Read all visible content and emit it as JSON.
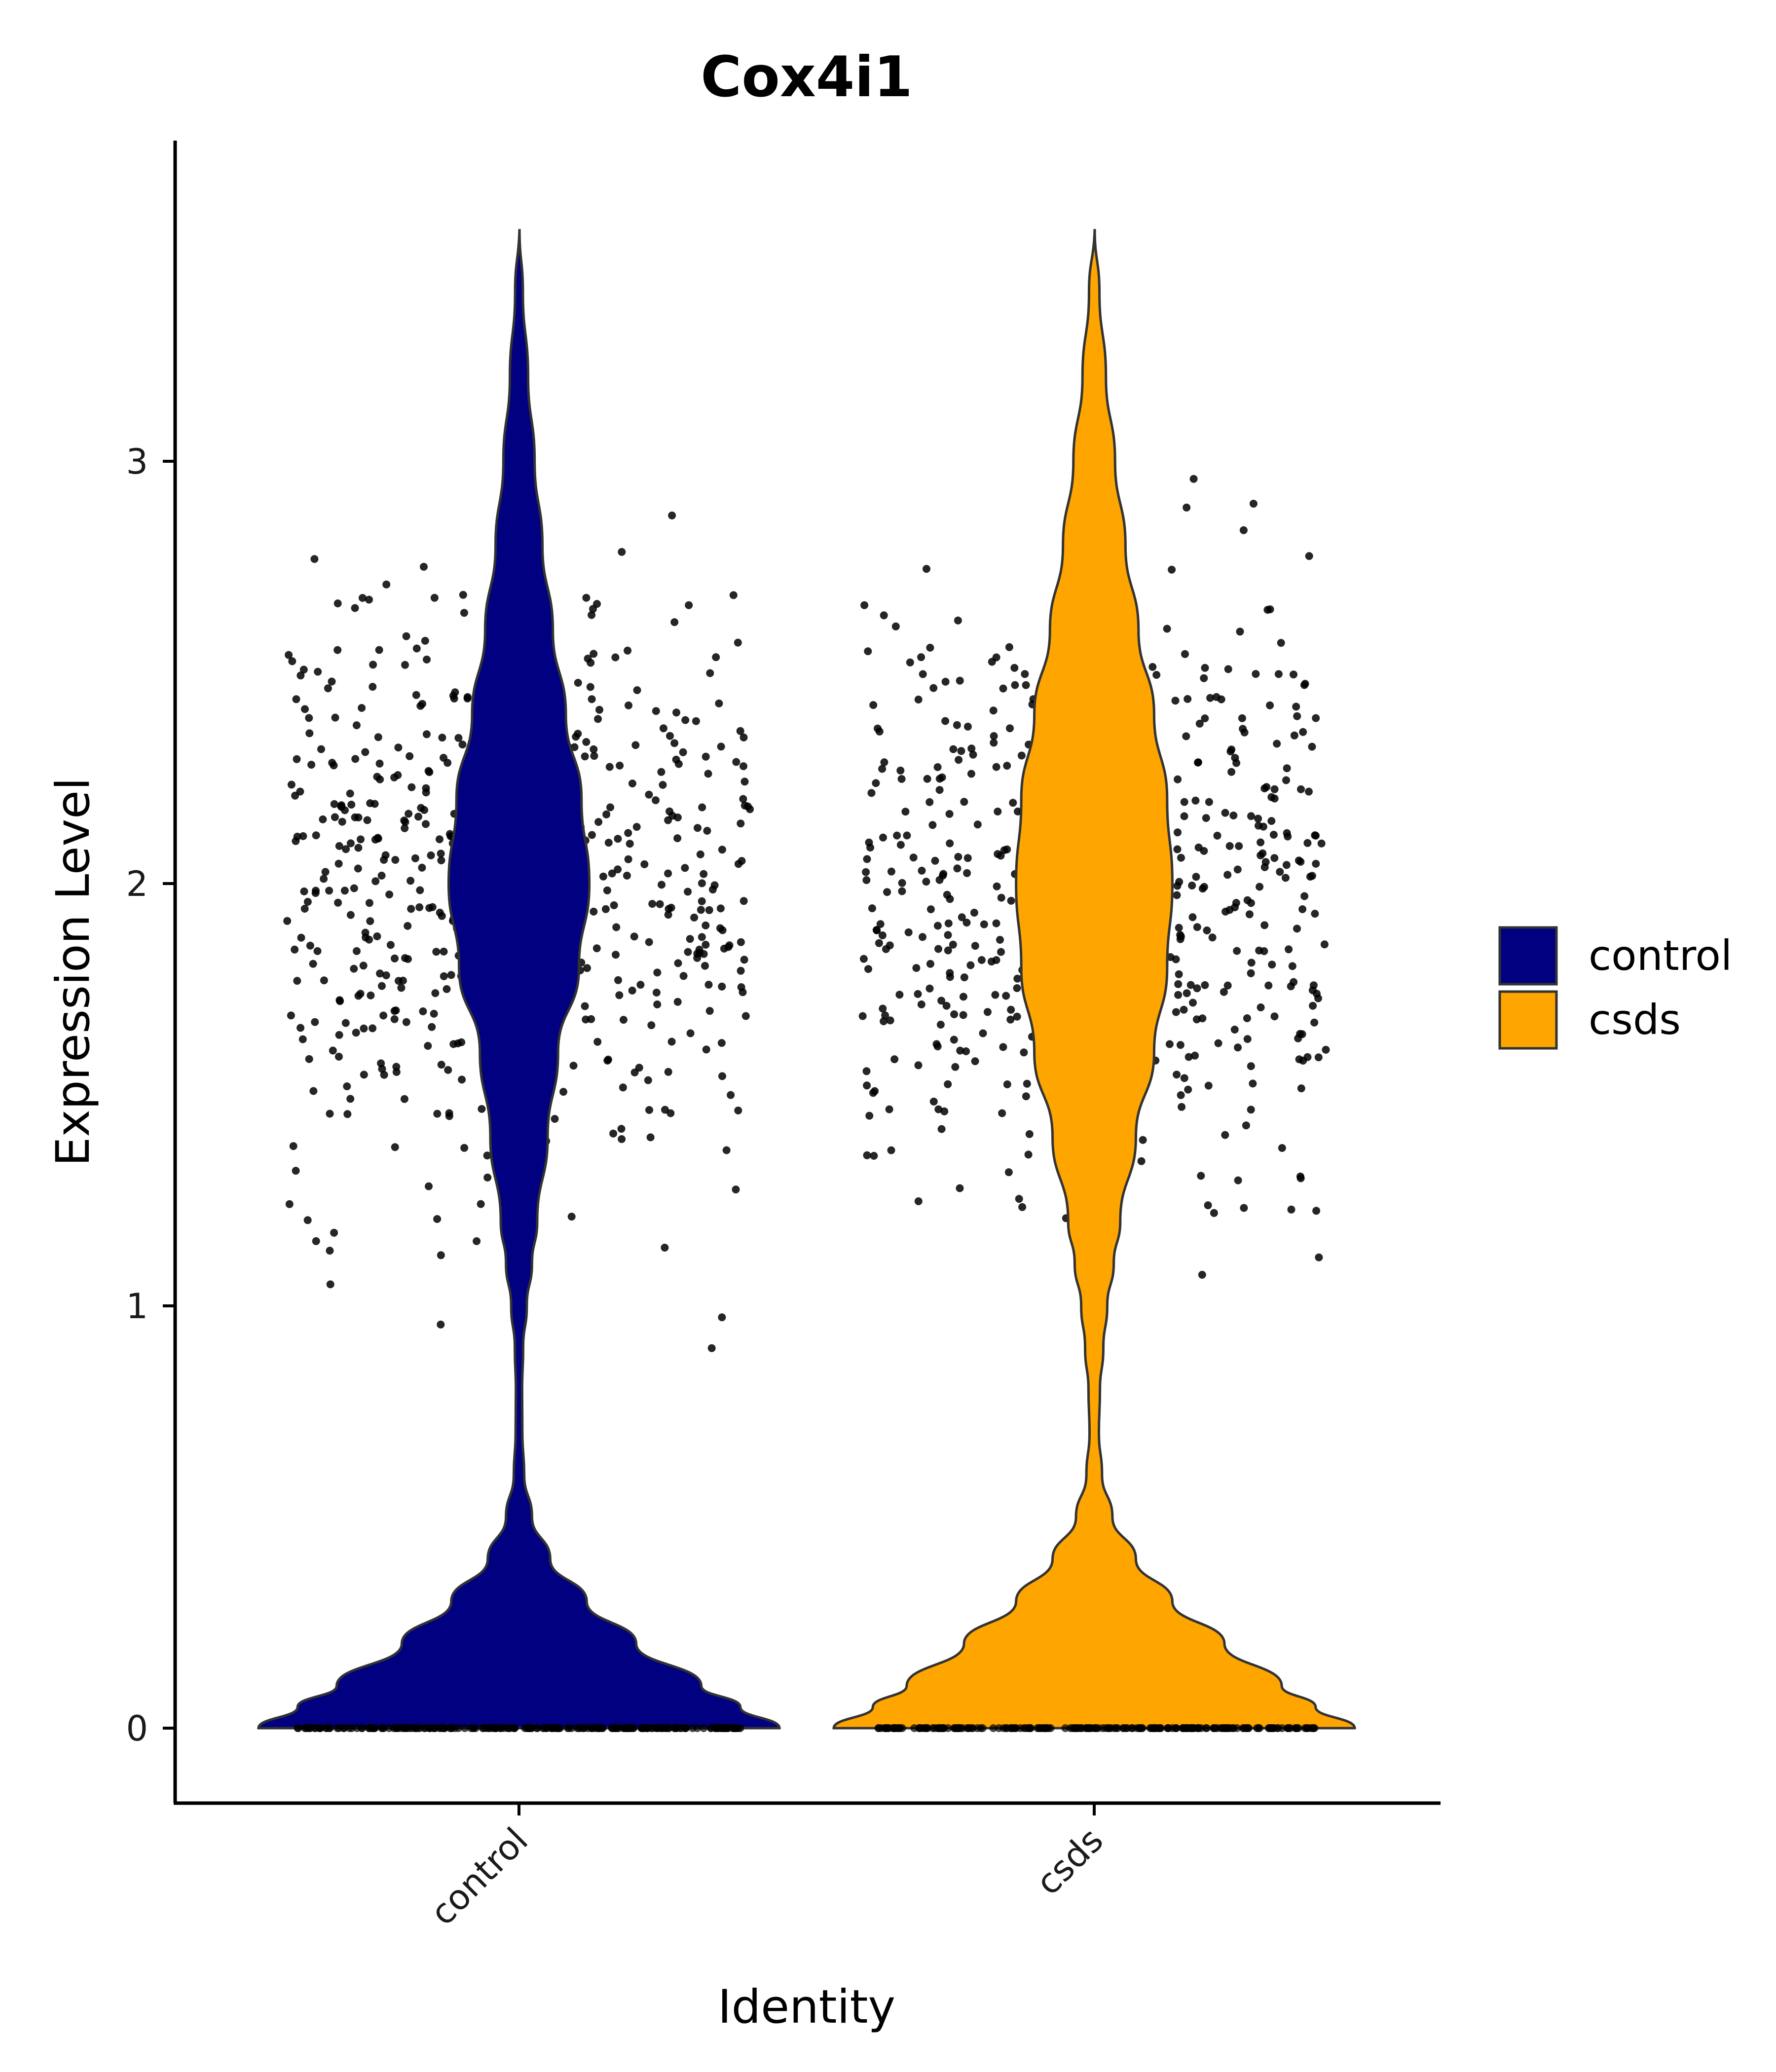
{
  "chart_data": {
    "type": "violin",
    "title": "Cox4i1",
    "xlabel": "Identity",
    "ylabel": "Expression Level",
    "ylim": [
      -0.18,
      3.6
    ],
    "yticks": [
      0,
      1,
      2,
      3
    ],
    "categories": [
      "control",
      "csds"
    ],
    "grid": false,
    "legend_position": "right",
    "series": [
      {
        "name": "control",
        "color": "#000080",
        "max": 3.55,
        "zero_fraction": 0.45,
        "nonzero_range": [
          0.69,
          3.55
        ],
        "density": [
          [
            0,
            1.0
          ],
          [
            0.05,
            0.85
          ],
          [
            0.1,
            0.7
          ],
          [
            0.2,
            0.45
          ],
          [
            0.3,
            0.26
          ],
          [
            0.4,
            0.12
          ],
          [
            0.5,
            0.05
          ],
          [
            0.6,
            0.02
          ],
          [
            0.7,
            0.013
          ],
          [
            0.8,
            0.012
          ],
          [
            0.9,
            0.016
          ],
          [
            1.0,
            0.03
          ],
          [
            1.1,
            0.05
          ],
          [
            1.2,
            0.07
          ],
          [
            1.4,
            0.11
          ],
          [
            1.6,
            0.15
          ],
          [
            1.8,
            0.23
          ],
          [
            2.0,
            0.27
          ],
          [
            2.2,
            0.24
          ],
          [
            2.4,
            0.18
          ],
          [
            2.6,
            0.13
          ],
          [
            2.8,
            0.09
          ],
          [
            3.0,
            0.06
          ],
          [
            3.2,
            0.035
          ],
          [
            3.4,
            0.015
          ],
          [
            3.55,
            0.002
          ]
        ]
      },
      {
        "name": "csds",
        "color": "#FFA500",
        "max": 3.55,
        "zero_fraction": 0.45,
        "nonzero_range": [
          0.72,
          3.55
        ],
        "density": [
          [
            0,
            1.0
          ],
          [
            0.05,
            0.85
          ],
          [
            0.1,
            0.72
          ],
          [
            0.2,
            0.5
          ],
          [
            0.3,
            0.3
          ],
          [
            0.4,
            0.16
          ],
          [
            0.5,
            0.07
          ],
          [
            0.6,
            0.03
          ],
          [
            0.7,
            0.018
          ],
          [
            0.8,
            0.022
          ],
          [
            0.9,
            0.035
          ],
          [
            1.0,
            0.05
          ],
          [
            1.1,
            0.075
          ],
          [
            1.2,
            0.1
          ],
          [
            1.4,
            0.16
          ],
          [
            1.6,
            0.23
          ],
          [
            1.8,
            0.28
          ],
          [
            2.0,
            0.3
          ],
          [
            2.2,
            0.28
          ],
          [
            2.4,
            0.23
          ],
          [
            2.6,
            0.17
          ],
          [
            2.8,
            0.12
          ],
          [
            3.0,
            0.08
          ],
          [
            3.2,
            0.045
          ],
          [
            3.4,
            0.02
          ],
          [
            3.55,
            0.002
          ]
        ]
      }
    ]
  }
}
